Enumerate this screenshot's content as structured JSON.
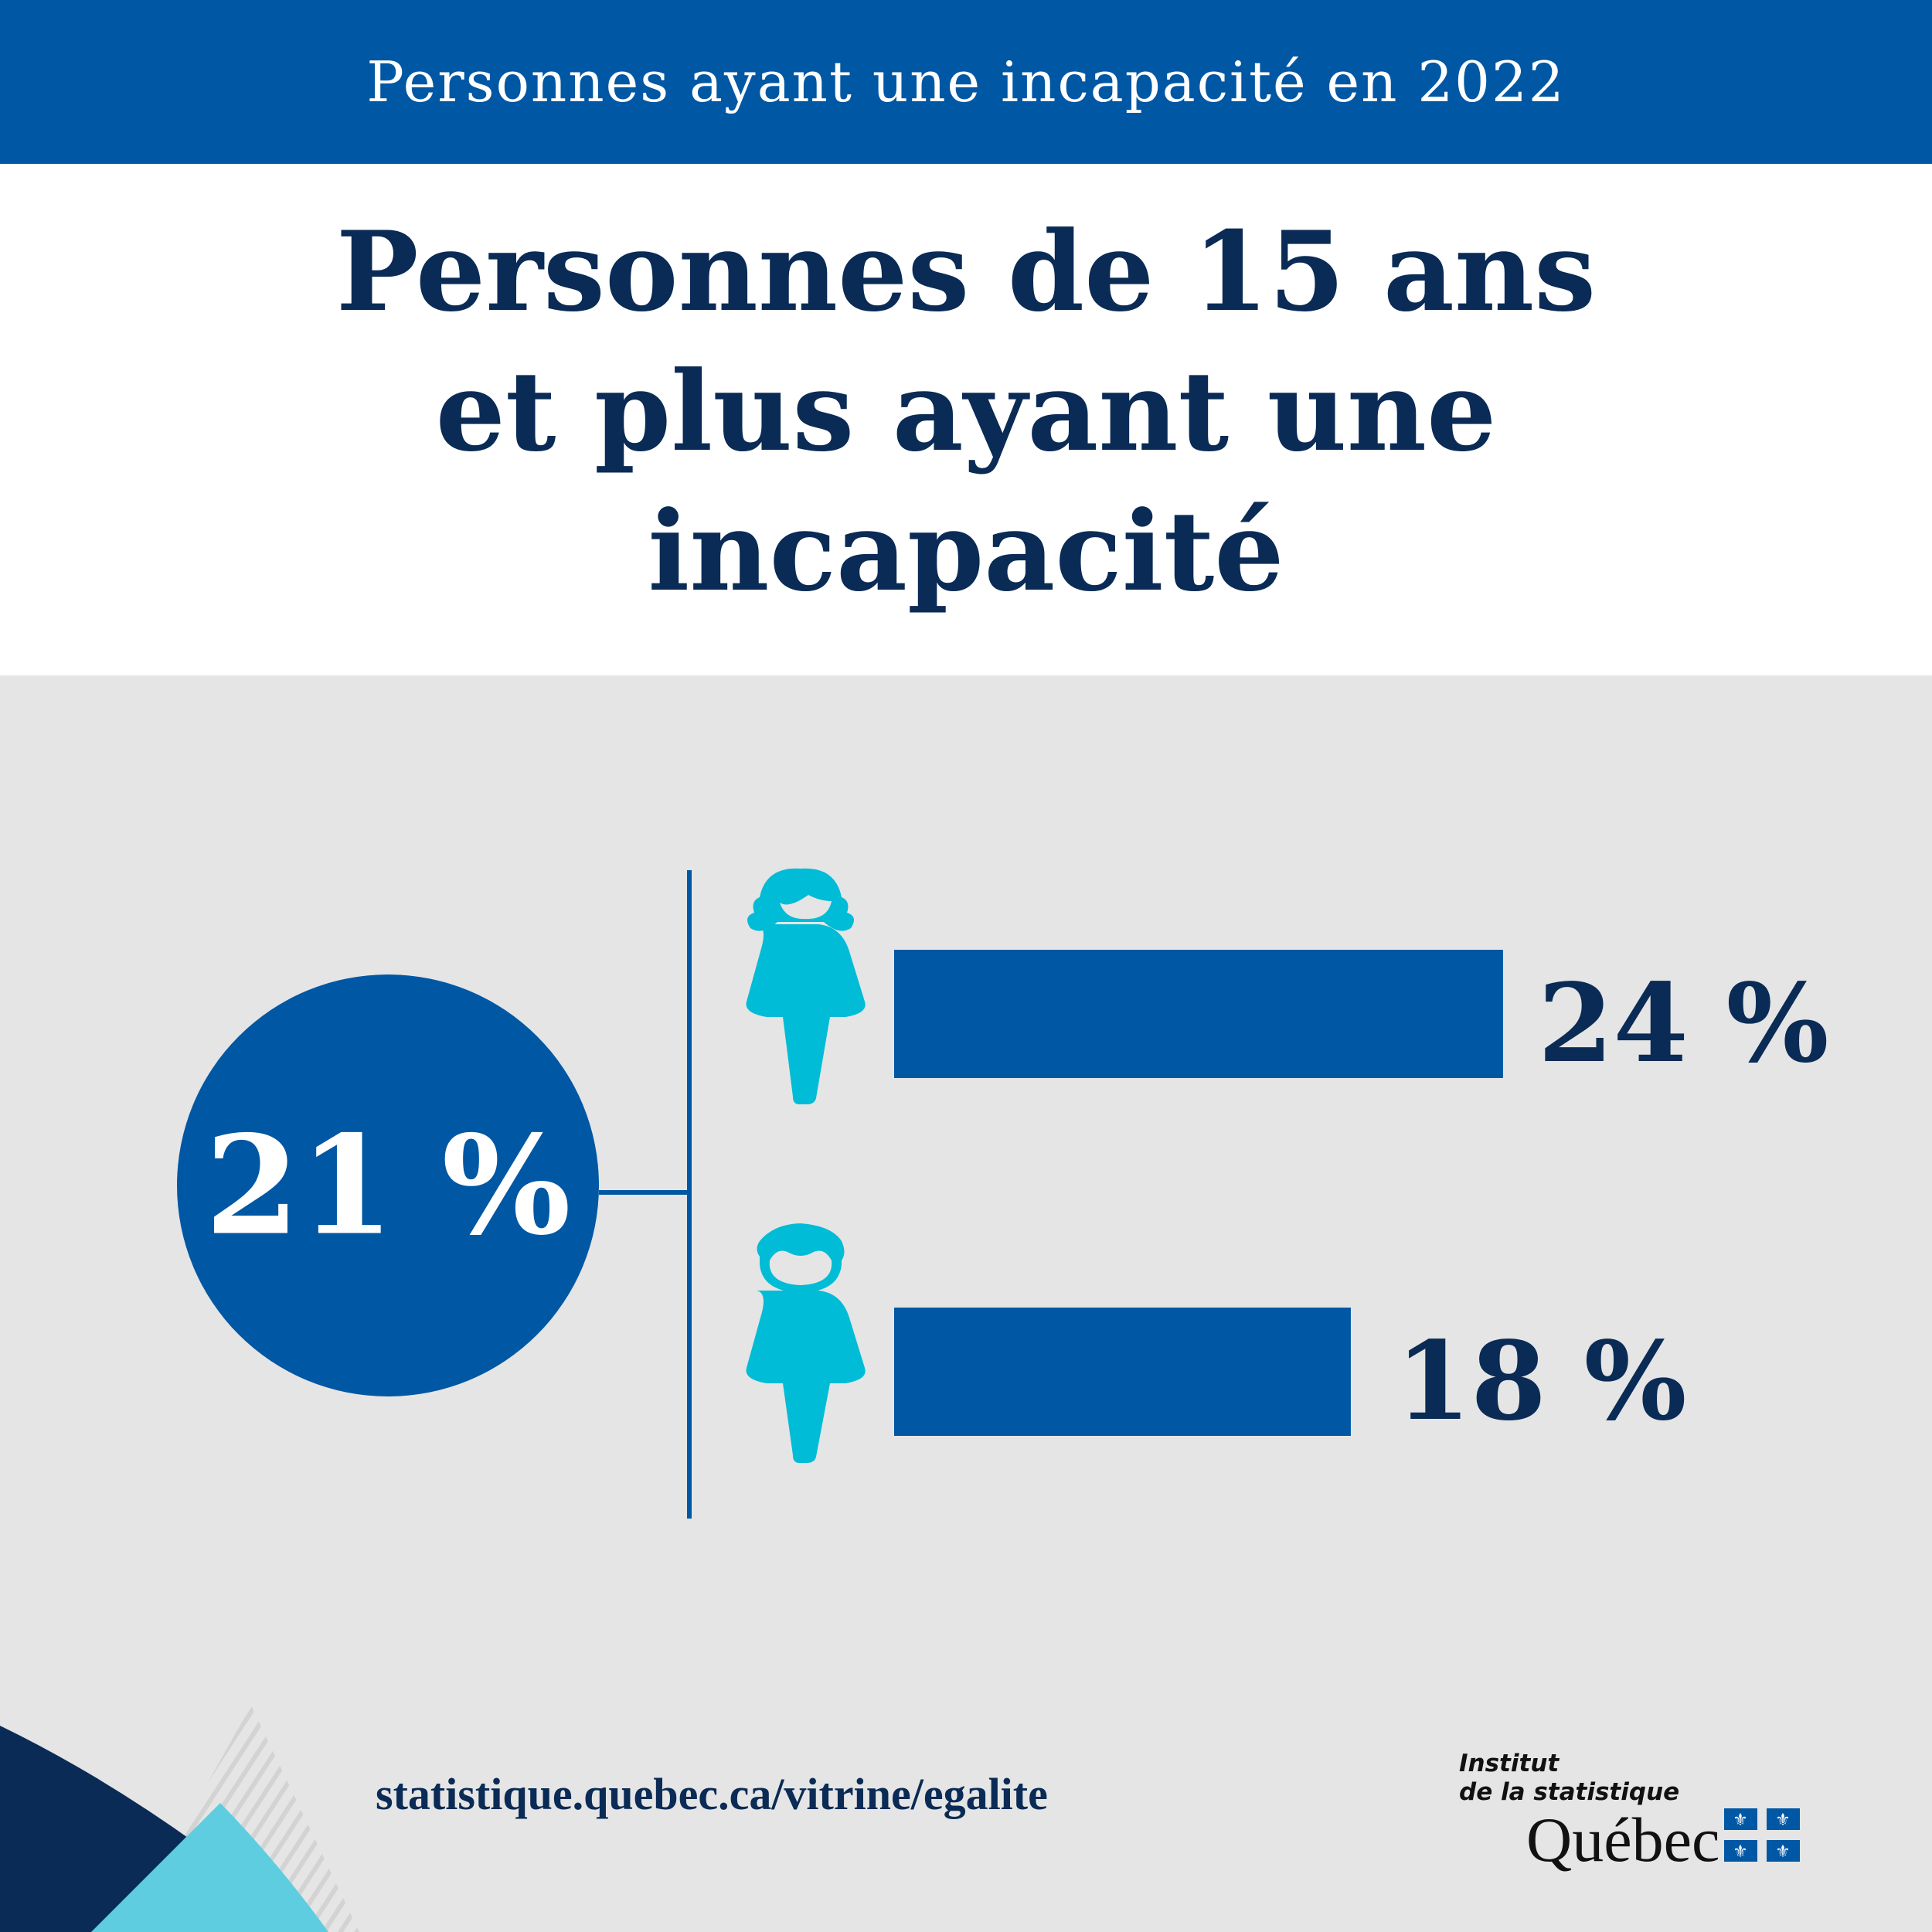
{
  "header": {
    "title": "Personnes ayant une incapacité en 2022"
  },
  "headline": {
    "lines": [
      "Personnes de 15 ans",
      "et plus ayant une",
      "incapacité"
    ]
  },
  "chart_data": {
    "type": "bar",
    "orientation": "horizontal",
    "total": {
      "value": 21,
      "label": "21 %"
    },
    "categories": [
      "Femmes (icône)",
      "Hommes (icône)"
    ],
    "values": [
      24,
      18
    ],
    "value_labels": [
      "24 %",
      "18 %"
    ],
    "unit": "%",
    "colors": {
      "bar": "#0057a4",
      "icons": "#00bcd6",
      "total_circle": "#0057a4",
      "text": "#0a2b55"
    }
  },
  "footer": {
    "url": "statistique.quebec.ca/vitrine/egalite",
    "logo": {
      "line1": "Institut",
      "line2": "de la statistique",
      "line3": "Québec"
    }
  },
  "colors": {
    "header": "#0057a4",
    "background": "#e5e5e5",
    "navy": "#0a2b55",
    "cyan": "#00bcd6",
    "light_cyan": "#5ecde0"
  }
}
